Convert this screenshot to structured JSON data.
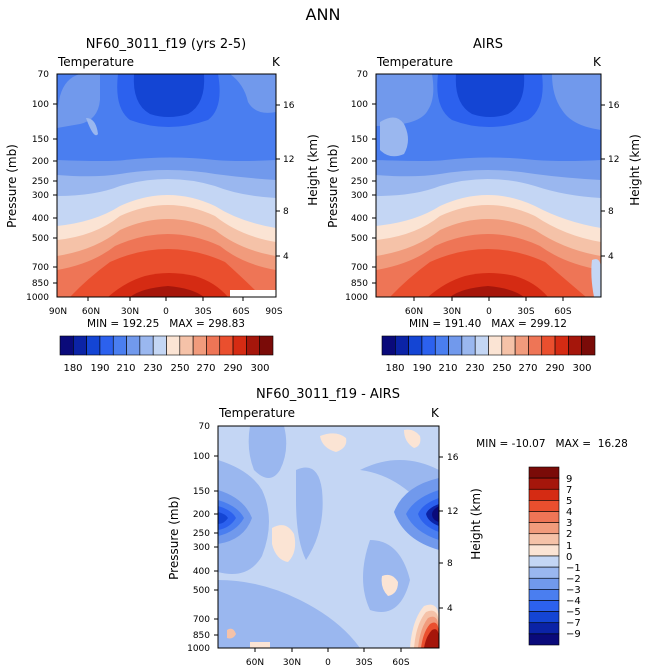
{
  "figure_title": "ANN",
  "chart_data": [
    {
      "type": "heatmap",
      "title": "NF60_3011_f19 (yrs 2-5)",
      "variable": "Temperature",
      "units": "K",
      "ylabel": "Pressure (mb)",
      "y2label": "Height (km)",
      "x_ticks": [
        "90N",
        "60N",
        "30N",
        "0",
        "30S",
        "60S",
        "90S"
      ],
      "y_ticks": [
        "70",
        "100",
        "150",
        "200",
        "250",
        "300",
        "400",
        "500",
        "700",
        "850",
        "1000"
      ],
      "y2_ticks": [
        "16",
        "12",
        "8",
        "4"
      ],
      "stats_text": "MIN = 192.25   MAX = 298.83",
      "min": 192.25,
      "max": 298.83,
      "contour_levels": [
        180,
        185,
        190,
        200,
        210,
        220,
        230,
        240,
        250,
        260,
        270,
        280,
        290,
        295,
        300
      ],
      "colorbar_labels": [
        "180",
        "190",
        "210",
        "230",
        "250",
        "270",
        "290",
        "300"
      ]
    },
    {
      "type": "heatmap",
      "title": "AIRS",
      "variable": "Temperature",
      "units": "K",
      "ylabel": "Pressure (mb)",
      "y2label": "Height (km)",
      "x_ticks": [
        "60N",
        "30N",
        "0",
        "30S",
        "60S"
      ],
      "y_ticks": [
        "70",
        "100",
        "150",
        "200",
        "250",
        "300",
        "400",
        "500",
        "700",
        "850",
        "1000"
      ],
      "y2_ticks": [
        "16",
        "12",
        "8",
        "4"
      ],
      "stats_text": "MIN = 191.40   MAX = 299.12",
      "min": 191.4,
      "max": 299.12,
      "contour_levels": [
        180,
        185,
        190,
        200,
        210,
        220,
        230,
        240,
        250,
        260,
        270,
        280,
        290,
        295,
        300
      ],
      "colorbar_labels": [
        "180",
        "190",
        "210",
        "230",
        "250",
        "270",
        "290",
        "300"
      ]
    },
    {
      "type": "heatmap",
      "title": "NF60_3011_f19 - AIRS",
      "variable": "Temperature",
      "units": "K",
      "ylabel": "Pressure (mb)",
      "y2label": "Height (km)",
      "x_ticks": [
        "60N",
        "30N",
        "0",
        "30S",
        "60S"
      ],
      "y_ticks": [
        "70",
        "100",
        "150",
        "200",
        "250",
        "300",
        "400",
        "500",
        "700",
        "850",
        "1000"
      ],
      "y2_ticks": [
        "16",
        "12",
        "8",
        "4"
      ],
      "stats_text": "MIN = -10.07   MAX =  16.28",
      "min": -10.07,
      "max": 16.28,
      "contour_levels": [
        -9,
        -7,
        -5,
        -4,
        -3,
        -2,
        -1,
        0,
        1,
        2,
        3,
        4,
        5,
        7,
        9
      ],
      "colorbar_labels": [
        "9",
        "7",
        "5",
        "4",
        "3",
        "2",
        "1",
        "0",
        "−1",
        "−2",
        "−3",
        "−4",
        "−5",
        "−7",
        "−9"
      ]
    }
  ],
  "colors": {
    "abs_scale": [
      "#0a0a7a",
      "#0b23a6",
      "#1445d4",
      "#2c61ee",
      "#4a7ef0",
      "#7199ec",
      "#9ab7ef",
      "#c4d6f4",
      "#fbe4d4",
      "#f5c2a8",
      "#f19b7c",
      "#ee7556",
      "#ea4f2e",
      "#d52b13",
      "#a5160b",
      "#7a0b08"
    ],
    "diff_scale": [
      "#7a0b08",
      "#a5160b",
      "#d52b13",
      "#ea4f2e",
      "#ee7556",
      "#f19b7c",
      "#f5c2a8",
      "#fbe4d4",
      "#c4d6f4",
      "#9ab7ef",
      "#7199ec",
      "#4a7ef0",
      "#2c61ee",
      "#1445d4",
      "#0b23a6",
      "#0a0a7a"
    ]
  }
}
